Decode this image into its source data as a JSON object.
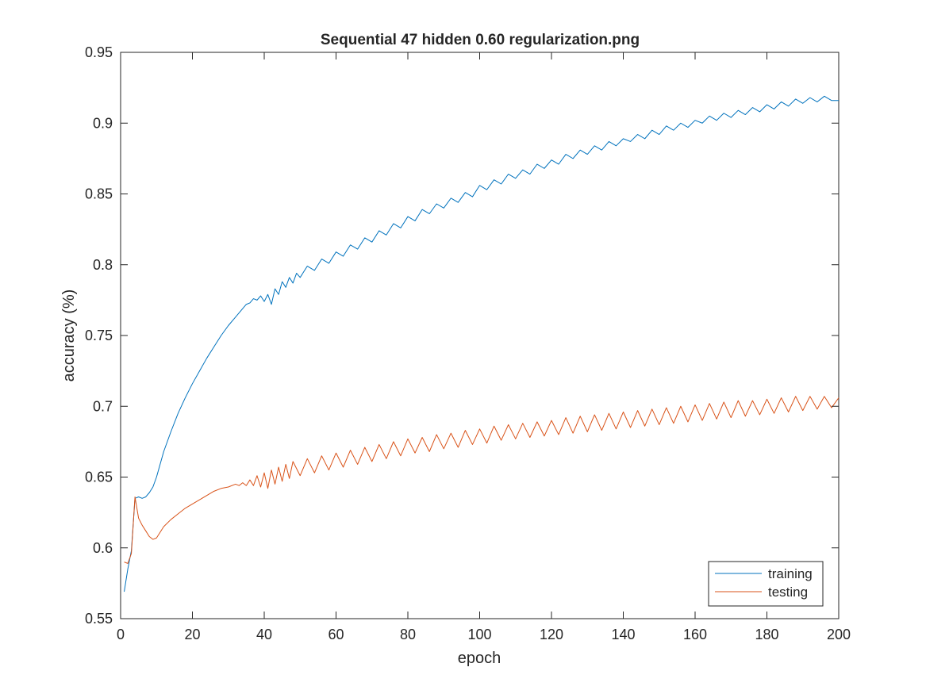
{
  "chart_data": {
    "type": "line",
    "title": "Sequential 47 hidden 0.60 regularization.png",
    "xlabel": "epoch",
    "ylabel": "accuracy (%)",
    "xlim": [
      0,
      200
    ],
    "ylim": [
      0.55,
      0.95
    ],
    "xticks": [
      0,
      20,
      40,
      60,
      80,
      100,
      120,
      140,
      160,
      180,
      200
    ],
    "yticks": [
      0.55,
      0.6,
      0.65,
      0.7,
      0.75,
      0.8,
      0.85,
      0.9,
      0.95
    ],
    "xtick_labels": [
      "0",
      "20",
      "40",
      "60",
      "80",
      "100",
      "120",
      "140",
      "160",
      "180",
      "200"
    ],
    "ytick_labels": [
      "0.55",
      "0.6",
      "0.65",
      "0.7",
      "0.75",
      "0.8",
      "0.85",
      "0.9",
      "0.95"
    ],
    "grid": false,
    "legend_position": "bottom-right",
    "series": [
      {
        "name": "training",
        "color": "#0072BD",
        "x": [
          1,
          2,
          3,
          4,
          5,
          6,
          7,
          8,
          9,
          10,
          12,
          14,
          16,
          18,
          20,
          22,
          24,
          26,
          28,
          30,
          32,
          34,
          35,
          36,
          37,
          38,
          39,
          40,
          41,
          42,
          43,
          44,
          45,
          46,
          47,
          48,
          49,
          50,
          52,
          54,
          56,
          58,
          60,
          62,
          64,
          66,
          68,
          70,
          72,
          74,
          76,
          78,
          80,
          82,
          84,
          86,
          88,
          90,
          92,
          94,
          96,
          98,
          100,
          102,
          104,
          106,
          108,
          110,
          112,
          114,
          116,
          118,
          120,
          122,
          124,
          126,
          128,
          130,
          132,
          134,
          136,
          138,
          140,
          142,
          144,
          146,
          148,
          150,
          152,
          154,
          156,
          158,
          160,
          162,
          164,
          166,
          168,
          170,
          172,
          174,
          176,
          178,
          180,
          182,
          184,
          186,
          188,
          190,
          192,
          194,
          196,
          198,
          200
        ],
        "y": [
          0.569,
          0.585,
          0.598,
          0.635,
          0.636,
          0.635,
          0.636,
          0.639,
          0.643,
          0.65,
          0.668,
          0.682,
          0.695,
          0.706,
          0.716,
          0.725,
          0.734,
          0.742,
          0.75,
          0.757,
          0.763,
          0.769,
          0.772,
          0.773,
          0.776,
          0.775,
          0.778,
          0.774,
          0.779,
          0.772,
          0.783,
          0.779,
          0.788,
          0.784,
          0.791,
          0.787,
          0.794,
          0.791,
          0.799,
          0.796,
          0.804,
          0.801,
          0.809,
          0.806,
          0.814,
          0.811,
          0.819,
          0.816,
          0.824,
          0.821,
          0.829,
          0.826,
          0.834,
          0.831,
          0.839,
          0.836,
          0.843,
          0.84,
          0.847,
          0.844,
          0.851,
          0.848,
          0.856,
          0.853,
          0.86,
          0.857,
          0.864,
          0.861,
          0.867,
          0.864,
          0.871,
          0.868,
          0.874,
          0.871,
          0.878,
          0.875,
          0.881,
          0.878,
          0.884,
          0.881,
          0.887,
          0.884,
          0.889,
          0.887,
          0.892,
          0.889,
          0.895,
          0.892,
          0.898,
          0.895,
          0.9,
          0.897,
          0.902,
          0.9,
          0.905,
          0.902,
          0.907,
          0.904,
          0.909,
          0.906,
          0.911,
          0.908,
          0.913,
          0.91,
          0.915,
          0.912,
          0.917,
          0.914,
          0.918,
          0.915,
          0.919,
          0.916,
          0.916
        ]
      },
      {
        "name": "testing",
        "color": "#D95319",
        "x": [
          1,
          2,
          3,
          4,
          5,
          6,
          7,
          8,
          9,
          10,
          11,
          12,
          14,
          16,
          18,
          20,
          22,
          24,
          26,
          28,
          30,
          32,
          33,
          34,
          35,
          36,
          37,
          38,
          39,
          40,
          41,
          42,
          43,
          44,
          45,
          46,
          47,
          48,
          50,
          52,
          54,
          56,
          58,
          60,
          62,
          64,
          66,
          68,
          70,
          72,
          74,
          76,
          78,
          80,
          82,
          84,
          86,
          88,
          90,
          92,
          94,
          96,
          98,
          100,
          102,
          104,
          106,
          108,
          110,
          112,
          114,
          116,
          118,
          120,
          122,
          124,
          126,
          128,
          130,
          132,
          134,
          136,
          138,
          140,
          142,
          144,
          146,
          148,
          150,
          152,
          154,
          156,
          158,
          160,
          162,
          164,
          166,
          168,
          170,
          172,
          174,
          176,
          178,
          180,
          182,
          184,
          186,
          188,
          190,
          192,
          194,
          196,
          198,
          200
        ],
        "y": [
          0.59,
          0.589,
          0.596,
          0.636,
          0.621,
          0.616,
          0.612,
          0.608,
          0.606,
          0.607,
          0.611,
          0.615,
          0.62,
          0.624,
          0.628,
          0.631,
          0.634,
          0.637,
          0.64,
          0.642,
          0.643,
          0.645,
          0.644,
          0.646,
          0.644,
          0.648,
          0.644,
          0.651,
          0.643,
          0.653,
          0.642,
          0.655,
          0.645,
          0.657,
          0.647,
          0.659,
          0.649,
          0.661,
          0.651,
          0.663,
          0.653,
          0.665,
          0.655,
          0.667,
          0.657,
          0.669,
          0.659,
          0.671,
          0.661,
          0.673,
          0.663,
          0.675,
          0.665,
          0.677,
          0.667,
          0.678,
          0.668,
          0.68,
          0.67,
          0.681,
          0.671,
          0.683,
          0.673,
          0.684,
          0.674,
          0.686,
          0.676,
          0.687,
          0.677,
          0.688,
          0.678,
          0.689,
          0.679,
          0.69,
          0.68,
          0.692,
          0.681,
          0.693,
          0.682,
          0.694,
          0.683,
          0.695,
          0.684,
          0.696,
          0.685,
          0.697,
          0.686,
          0.698,
          0.687,
          0.699,
          0.688,
          0.7,
          0.689,
          0.701,
          0.69,
          0.702,
          0.691,
          0.703,
          0.692,
          0.704,
          0.693,
          0.704,
          0.694,
          0.705,
          0.695,
          0.706,
          0.696,
          0.707,
          0.697,
          0.707,
          0.698,
          0.707,
          0.699,
          0.706
        ]
      }
    ]
  }
}
